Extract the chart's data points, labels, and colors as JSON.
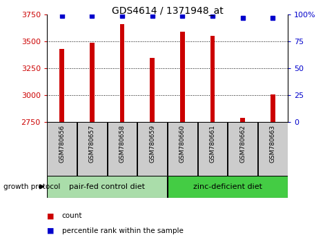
{
  "title": "GDS4614 / 1371948_at",
  "samples": [
    "GSM780656",
    "GSM780657",
    "GSM780658",
    "GSM780659",
    "GSM780660",
    "GSM780661",
    "GSM780662",
    "GSM780663"
  ],
  "counts": [
    3430,
    3490,
    3660,
    3350,
    3590,
    3555,
    2790,
    3005
  ],
  "percentiles": [
    99,
    99,
    99,
    99,
    99,
    99,
    97,
    97
  ],
  "ylim_left": [
    2750,
    3750
  ],
  "ylim_right": [
    0,
    100
  ],
  "yticks_left": [
    2750,
    3000,
    3250,
    3500,
    3750
  ],
  "yticks_right": [
    0,
    25,
    50,
    75,
    100
  ],
  "bar_color": "#cc0000",
  "dot_color": "#0000cc",
  "group1_label": "pair-fed control diet",
  "group2_label": "zinc-deficient diet",
  "group1_indices": [
    0,
    1,
    2,
    3
  ],
  "group2_indices": [
    4,
    5,
    6,
    7
  ],
  "group_label": "growth protocol",
  "legend_count_label": "count",
  "legend_pct_label": "percentile rank within the sample",
  "xticklabel_bg": "#cccccc",
  "group1_bg": "#aaddaa",
  "group2_bg": "#44cc44",
  "bar_width": 0.15
}
